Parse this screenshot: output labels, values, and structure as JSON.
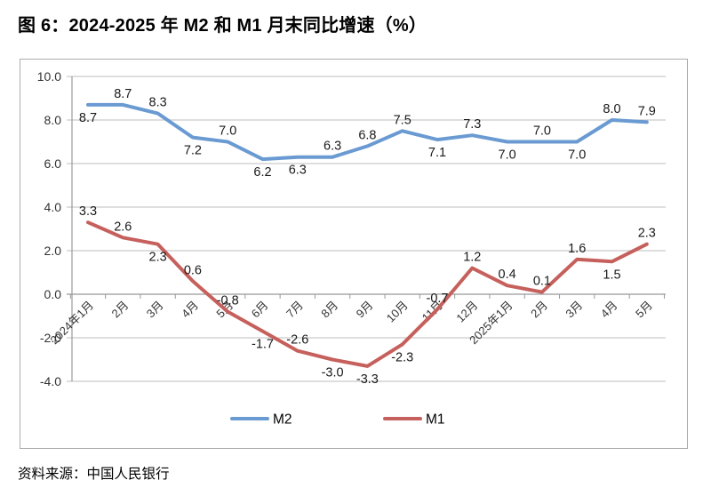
{
  "figure": {
    "title": "图 6：2024-2025 年 M2 和 M1 月末同比增速（%）",
    "source": "资料来源：中国人民银行"
  },
  "chart_data": {
    "type": "line",
    "title": "图 6：2024-2025 年 M2 和 M1 月末同比增速（%）",
    "categories": [
      "2024年1月",
      "2月",
      "3月",
      "4月",
      "5月",
      "6月",
      "7月",
      "8月",
      "9月",
      "10月",
      "11月",
      "12月",
      "2025年1月",
      "2月",
      "3月",
      "4月",
      "5月"
    ],
    "series": [
      {
        "name": "M2",
        "color": "#6a9ad2",
        "values": [
          8.7,
          8.7,
          8.3,
          7.2,
          7.0,
          6.2,
          6.3,
          6.3,
          6.8,
          7.5,
          7.1,
          7.3,
          7.0,
          7.0,
          7.0,
          8.0,
          7.9
        ],
        "label_pos": [
          "below",
          "above",
          "above",
          "below",
          "above",
          "below",
          "below",
          "above",
          "above",
          "above",
          "below",
          "above",
          "below",
          "above",
          "below",
          "above",
          "above"
        ]
      },
      {
        "name": "M1",
        "color": "#c6605c",
        "values": [
          3.3,
          2.6,
          2.3,
          0.6,
          -0.8,
          -1.7,
          -2.6,
          -3.0,
          -3.3,
          -2.3,
          -0.7,
          1.2,
          0.4,
          0.1,
          1.6,
          1.5,
          2.3
        ],
        "label_pos": [
          "above",
          "above",
          "below",
          "above",
          "above",
          "below",
          "above",
          "below",
          "below",
          "below",
          "above",
          "above",
          "above",
          "above",
          "above",
          "below",
          "above"
        ]
      }
    ],
    "ylim": [
      -4.0,
      10.0
    ],
    "yticks": [
      10.0,
      8.0,
      6.0,
      4.0,
      2.0,
      0.0,
      -2.0,
      -4.0
    ],
    "ytick_step": 2.0,
    "value_decimals": 1,
    "grid": true,
    "legend": [
      "M2",
      "M1"
    ],
    "legend_position": "bottom",
    "colors": {
      "gridline": "#c9c9c9",
      "axis_line": "#999999",
      "box_border": "#ababab",
      "tick_label": "#333333",
      "data_label": "#1a1a1a",
      "legend_text": "#000000"
    }
  }
}
